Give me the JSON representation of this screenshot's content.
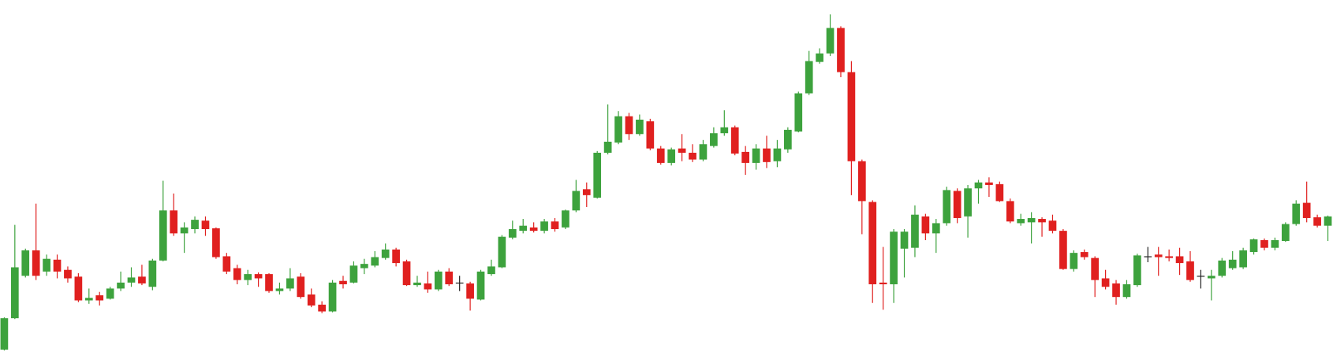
{
  "chart_data": {
    "type": "candlestick",
    "up_color": "#3da23d",
    "down_color": "#e0201f",
    "doji_color": "#222222",
    "open": [
      18,
      55,
      105,
      135,
      110,
      124,
      112,
      104,
      76,
      82,
      78,
      90,
      97,
      104,
      92,
      123,
      182,
      155,
      160,
      170,
      161,
      128,
      114,
      100,
      107,
      107,
      87,
      90,
      104,
      83,
      71,
      63,
      99,
      97,
      114,
      117,
      126,
      136,
      122,
      94,
      96,
      89,
      110,
      97,
      96,
      77,
      107,
      115,
      150,
      158,
      162,
      158,
      169,
      162,
      182,
      207,
      197,
      250,
      262,
      293,
      272,
      287,
      255,
      238,
      255,
      250,
      242,
      258,
      273,
      280,
      251,
      238,
      255,
      240,
      254,
      275,
      320,
      357,
      367,
      397,
      345,
      240,
      192,
      97,
      95,
      137,
      138,
      175,
      155,
      167,
      205,
      175,
      208,
      215,
      213,
      193,
      167,
      168,
      172,
      170,
      158,
      113,
      133,
      126,
      102,
      96,
      80,
      94,
      128,
      130,
      128,
      128,
      122,
      105,
      102,
      105,
      114,
      115,
      133,
      147,
      138,
      146,
      166,
      191,
      174,
      164
    ],
    "high": [
      56,
      165,
      137,
      190,
      130,
      130,
      116,
      108,
      90,
      86,
      92,
      110,
      115,
      118,
      125,
      217,
      202,
      168,
      175,
      175,
      162,
      132,
      118,
      112,
      109,
      108,
      97,
      114,
      108,
      90,
      75,
      100,
      105,
      122,
      125,
      134,
      143,
      138,
      124,
      105,
      110,
      112,
      114,
      105,
      98,
      112,
      124,
      153,
      170,
      172,
      168,
      172,
      173,
      183,
      218,
      215,
      252,
      307,
      299,
      297,
      295,
      290,
      258,
      256,
      272,
      260,
      265,
      280,
      300,
      282,
      258,
      260,
      270,
      265,
      280,
      322,
      370,
      373,
      413,
      399,
      358,
      242,
      194,
      139,
      160,
      160,
      188,
      178,
      172,
      210,
      208,
      212,
      218,
      221,
      216,
      196,
      178,
      180,
      174,
      177,
      160,
      135,
      136,
      128,
      112,
      100,
      100,
      131,
      139,
      139,
      136,
      138,
      134,
      112,
      112,
      126,
      134,
      138,
      149,
      149,
      150,
      168,
      194,
      216,
      177,
      176
    ],
    "low": [
      17,
      54,
      103,
      100,
      105,
      102,
      97,
      74,
      72,
      70,
      77,
      87,
      92,
      94,
      88,
      122,
      152,
      132,
      155,
      152,
      125,
      107,
      95,
      94,
      92,
      85,
      83,
      87,
      78,
      68,
      61,
      62,
      90,
      96,
      107,
      115,
      124,
      116,
      93,
      92,
      85,
      87,
      93,
      87,
      64,
      76,
      105,
      114,
      148,
      155,
      156,
      155,
      157,
      160,
      180,
      186,
      196,
      248,
      260,
      265,
      270,
      253,
      236,
      235,
      240,
      239,
      240,
      256,
      270,
      247,
      224,
      230,
      232,
      233,
      250,
      274,
      318,
      355,
      364,
      339,
      200,
      154,
      73,
      65,
      73,
      103,
      127,
      147,
      132,
      164,
      167,
      150,
      190,
      198,
      192,
      167,
      164,
      143,
      151,
      155,
      112,
      110,
      124,
      80,
      89,
      71,
      78,
      92,
      121,
      105,
      122,
      106,
      98,
      90,
      76,
      103,
      112,
      113,
      130,
      135,
      135,
      145,
      164,
      168,
      162,
      146
    ],
    "close": [
      55,
      115,
      135,
      105,
      125,
      110,
      102,
      76,
      79,
      76,
      90,
      97,
      103,
      96,
      123,
      182,
      155,
      162,
      171,
      160,
      127,
      110,
      100,
      107,
      102,
      87,
      90,
      102,
      80,
      70,
      63,
      97,
      95,
      117,
      119,
      127,
      136,
      120,
      94,
      97,
      89,
      110,
      95,
      97,
      78,
      110,
      116,
      151,
      160,
      164,
      158,
      169,
      160,
      182,
      205,
      200,
      250,
      263,
      293,
      272,
      289,
      255,
      238,
      254,
      250,
      242,
      260,
      273,
      280,
      249,
      238,
      255,
      239,
      255,
      277,
      320,
      358,
      367,
      397,
      345,
      240,
      193,
      95,
      95,
      157,
      157,
      177,
      155,
      167,
      206,
      173,
      208,
      215,
      212,
      193,
      169,
      172,
      173,
      168,
      158,
      113,
      132,
      127,
      100,
      92,
      80,
      95,
      129,
      128,
      127,
      126,
      120,
      100,
      105,
      105,
      123,
      124,
      135,
      148,
      138,
      147,
      166,
      190,
      173,
      164,
      175
    ]
  }
}
